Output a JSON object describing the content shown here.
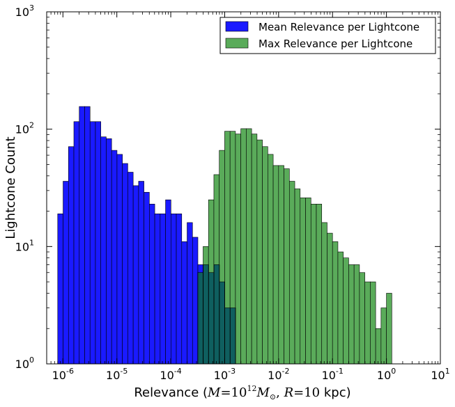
{
  "chart_data": {
    "type": "bar",
    "title": "",
    "xlabel": "Relevance ($M=10^{12}\\,M_{\\odot}$, $R=10$ kpc)",
    "xlabel_parts": {
      "prefix": "Relevance (",
      "m_var": "M",
      "m_mantissa": "10",
      "m_exp": "12",
      "m_unit": "M",
      "m_sub": "⊙",
      "r_var": "R",
      "r_val": "10",
      "suffix": " kpc)"
    },
    "ylabel": "Lightcone Count",
    "xscale": "log",
    "yscale": "log",
    "xlim": [
      5e-07,
      10
    ],
    "ylim": [
      1,
      1000
    ],
    "x_ticks": [
      {
        "base": "10",
        "exp": "-6",
        "value": 1e-06
      },
      {
        "base": "10",
        "exp": "-5",
        "value": 1e-05
      },
      {
        "base": "10",
        "exp": "-4",
        "value": 0.0001
      },
      {
        "base": "10",
        "exp": "-3",
        "value": 0.001
      },
      {
        "base": "10",
        "exp": "-2",
        "value": 0.01
      },
      {
        "base": "10",
        "exp": "-1",
        "value": 0.1
      },
      {
        "base": "10",
        "exp": "0",
        "value": 1
      },
      {
        "base": "10",
        "exp": "1",
        "value": 10
      }
    ],
    "y_ticks": [
      {
        "base": "10",
        "exp": "0",
        "value": 1
      },
      {
        "base": "10",
        "exp": "1",
        "value": 10
      },
      {
        "base": "10",
        "exp": "2",
        "value": 100
      },
      {
        "base": "10",
        "exp": "3",
        "value": 1000
      }
    ],
    "legend": {
      "position": "top-right"
    },
    "series": [
      {
        "name": "Mean Relevance per Lightcone",
        "color": "#1a1aff",
        "bin_start": 8e-07,
        "bins_per_decade": 10,
        "counts": [
          19,
          36,
          71,
          116,
          156,
          156,
          116,
          116,
          86,
          83,
          66,
          61,
          51,
          43,
          33,
          36,
          29,
          23,
          19,
          19,
          25,
          19,
          19,
          11,
          16,
          12,
          7,
          7,
          6,
          7,
          5,
          3,
          3,
          1,
          0,
          1
        ]
      },
      {
        "name": "Max Relevance per Lightcone",
        "color": "#5aab5a",
        "bin_start": 0.000316,
        "bins_per_decade": 10,
        "counts": [
          6,
          10,
          25,
          41,
          66,
          96,
          96,
          91,
          101,
          101,
          91,
          81,
          71,
          61,
          49,
          49,
          46,
          36,
          31,
          26,
          26,
          23,
          23,
          16,
          13,
          11,
          9,
          8,
          7,
          7,
          6,
          5,
          5,
          2,
          3,
          4
        ]
      }
    ],
    "overlap_color": "#0f5f5f"
  }
}
